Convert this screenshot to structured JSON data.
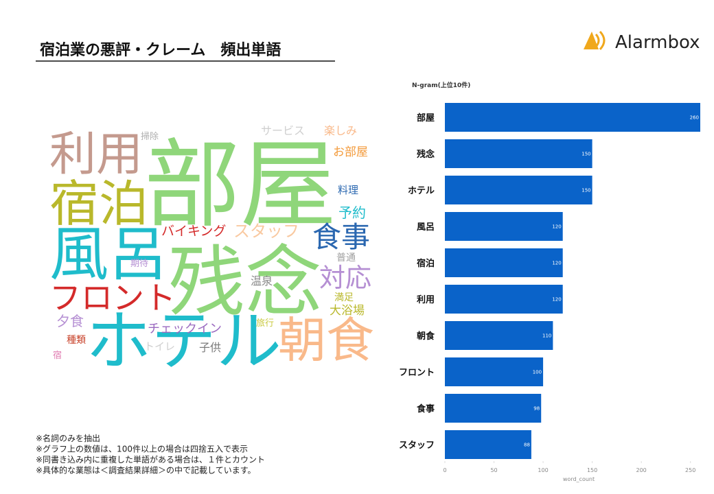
{
  "header": {
    "title": "宿泊業の悪評・クレーム　頻出単語",
    "logo": "Alarmbox"
  },
  "word_cloud": {
    "words": [
      {
        "text": "部屋",
        "color": "#8fd67a"
      },
      {
        "text": "残念",
        "color": "#8fd67a"
      },
      {
        "text": "ホテル",
        "color": "#1fbccb"
      },
      {
        "text": "風呂",
        "color": "#1fbccb"
      },
      {
        "text": "利用",
        "color": "#c49a8e"
      },
      {
        "text": "宿泊",
        "color": "#b9b82b"
      },
      {
        "text": "朝食",
        "color": "#f9b98a"
      },
      {
        "text": "フロント",
        "color": "#d42a2a"
      },
      {
        "text": "食事",
        "color": "#2a67b0"
      },
      {
        "text": "対応",
        "color": "#b58fd3"
      },
      {
        "text": "スタッフ",
        "color": "#f9c9a0"
      },
      {
        "text": "バイキング",
        "color": "#d42a2a"
      },
      {
        "text": "予約",
        "color": "#1fbccb"
      },
      {
        "text": "料理",
        "color": "#2a67b0"
      },
      {
        "text": "お部屋",
        "color": "#f39a3a"
      },
      {
        "text": "楽しみ",
        "color": "#f9b98a"
      },
      {
        "text": "サービス",
        "color": "#cfcfcf"
      },
      {
        "text": "掃除",
        "color": "#b0b0b0"
      },
      {
        "text": "期待",
        "color": "#b58fd3"
      },
      {
        "text": "普通",
        "color": "#a0a0a0"
      },
      {
        "text": "温泉",
        "color": "#8a8a8a"
      },
      {
        "text": "満足",
        "color": "#b9b82b"
      },
      {
        "text": "大浴場",
        "color": "#b9b82b"
      },
      {
        "text": "旅行",
        "color": "#c9c940"
      },
      {
        "text": "夕食",
        "color": "#b58fd3"
      },
      {
        "text": "チェックイン",
        "color": "#9b6ac0"
      },
      {
        "text": "種類",
        "color": "#c8432b"
      },
      {
        "text": "トイレ",
        "color": "#d0d0d0"
      },
      {
        "text": "子供",
        "color": "#7a7a7a"
      },
      {
        "text": "宿",
        "color": "#e07bb0"
      }
    ]
  },
  "chart_data": {
    "type": "barh",
    "title": "N-gram(上位10件)",
    "x_label": "word_count",
    "categories": [
      "部屋",
      "残念",
      "ホテル",
      "風呂",
      "宿泊",
      "利用",
      "朝食",
      "フロント",
      "食事",
      "スタッフ"
    ],
    "values": [
      260,
      150,
      150,
      120,
      120,
      120,
      110,
      100,
      98,
      88
    ],
    "color": "#0a63c9",
    "xlim": [
      0,
      260
    ],
    "xticks": [
      0,
      50,
      100,
      150,
      200,
      250
    ]
  },
  "notes": [
    "※名詞のみを抽出",
    "※グラフ上の数値は、100件以上の場合は四捨五入で表示",
    "※同書き込み内に重複した単語がある場合は、１件とカウント",
    "※具体的な業態は＜調査結果詳細＞の中で記載しています。"
  ]
}
